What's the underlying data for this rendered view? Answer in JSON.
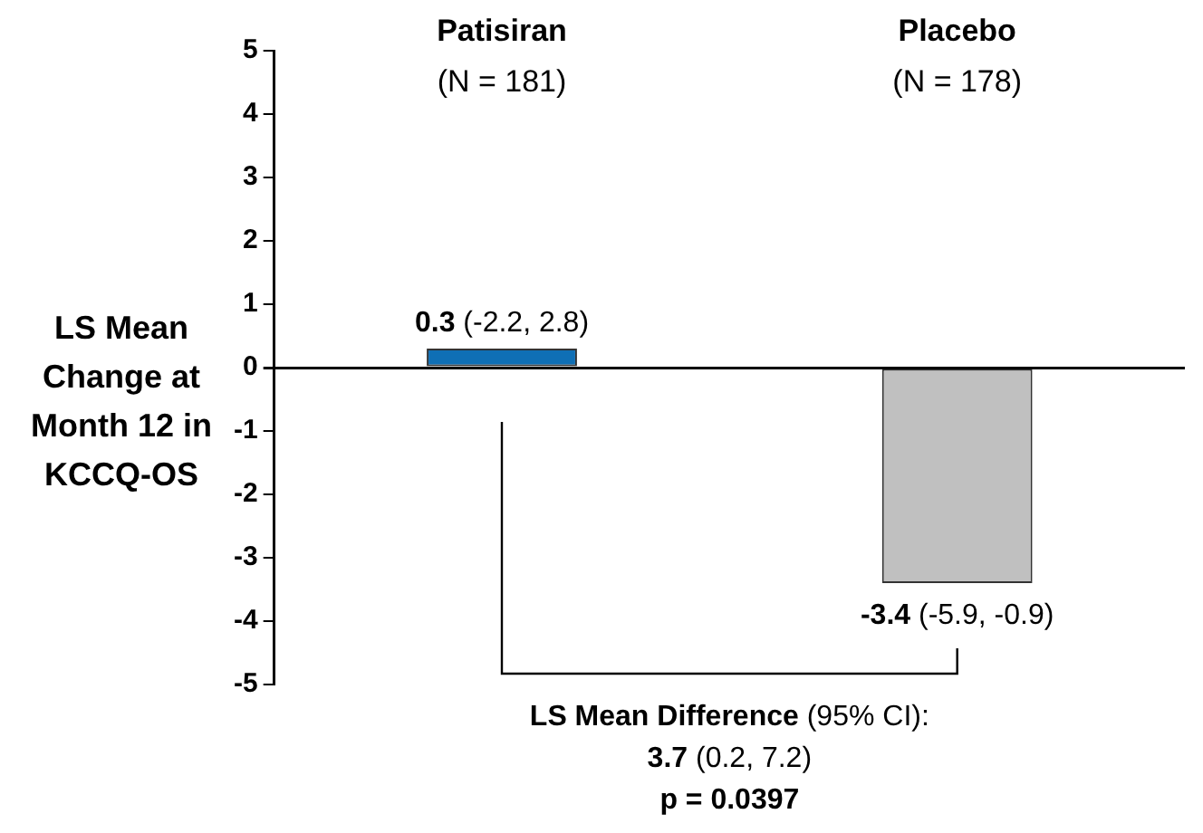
{
  "chart_data": {
    "type": "bar",
    "ylabel": "LS Mean Change at Month 12 in KCCQ-OS",
    "categories": [
      "Patisiran (N = 181)",
      "Placebo (N = 178)"
    ],
    "values": [
      0.3,
      -3.4
    ],
    "colors": [
      "#0f6fb5",
      "#c0c0c0"
    ],
    "value_labels": [
      "0.3 (-2.2, 2.8)",
      "-3.4 (-5.9, -0.9)"
    ],
    "ylim": [
      -5,
      5
    ],
    "yticks": [
      -5,
      -4,
      -3,
      -2,
      -1,
      0,
      1,
      2,
      3,
      4,
      5
    ],
    "annotations": [
      "LS Mean Difference (95% CI):",
      "3.7 (0.2, 7.2)",
      "p = 0.0397"
    ]
  }
}
